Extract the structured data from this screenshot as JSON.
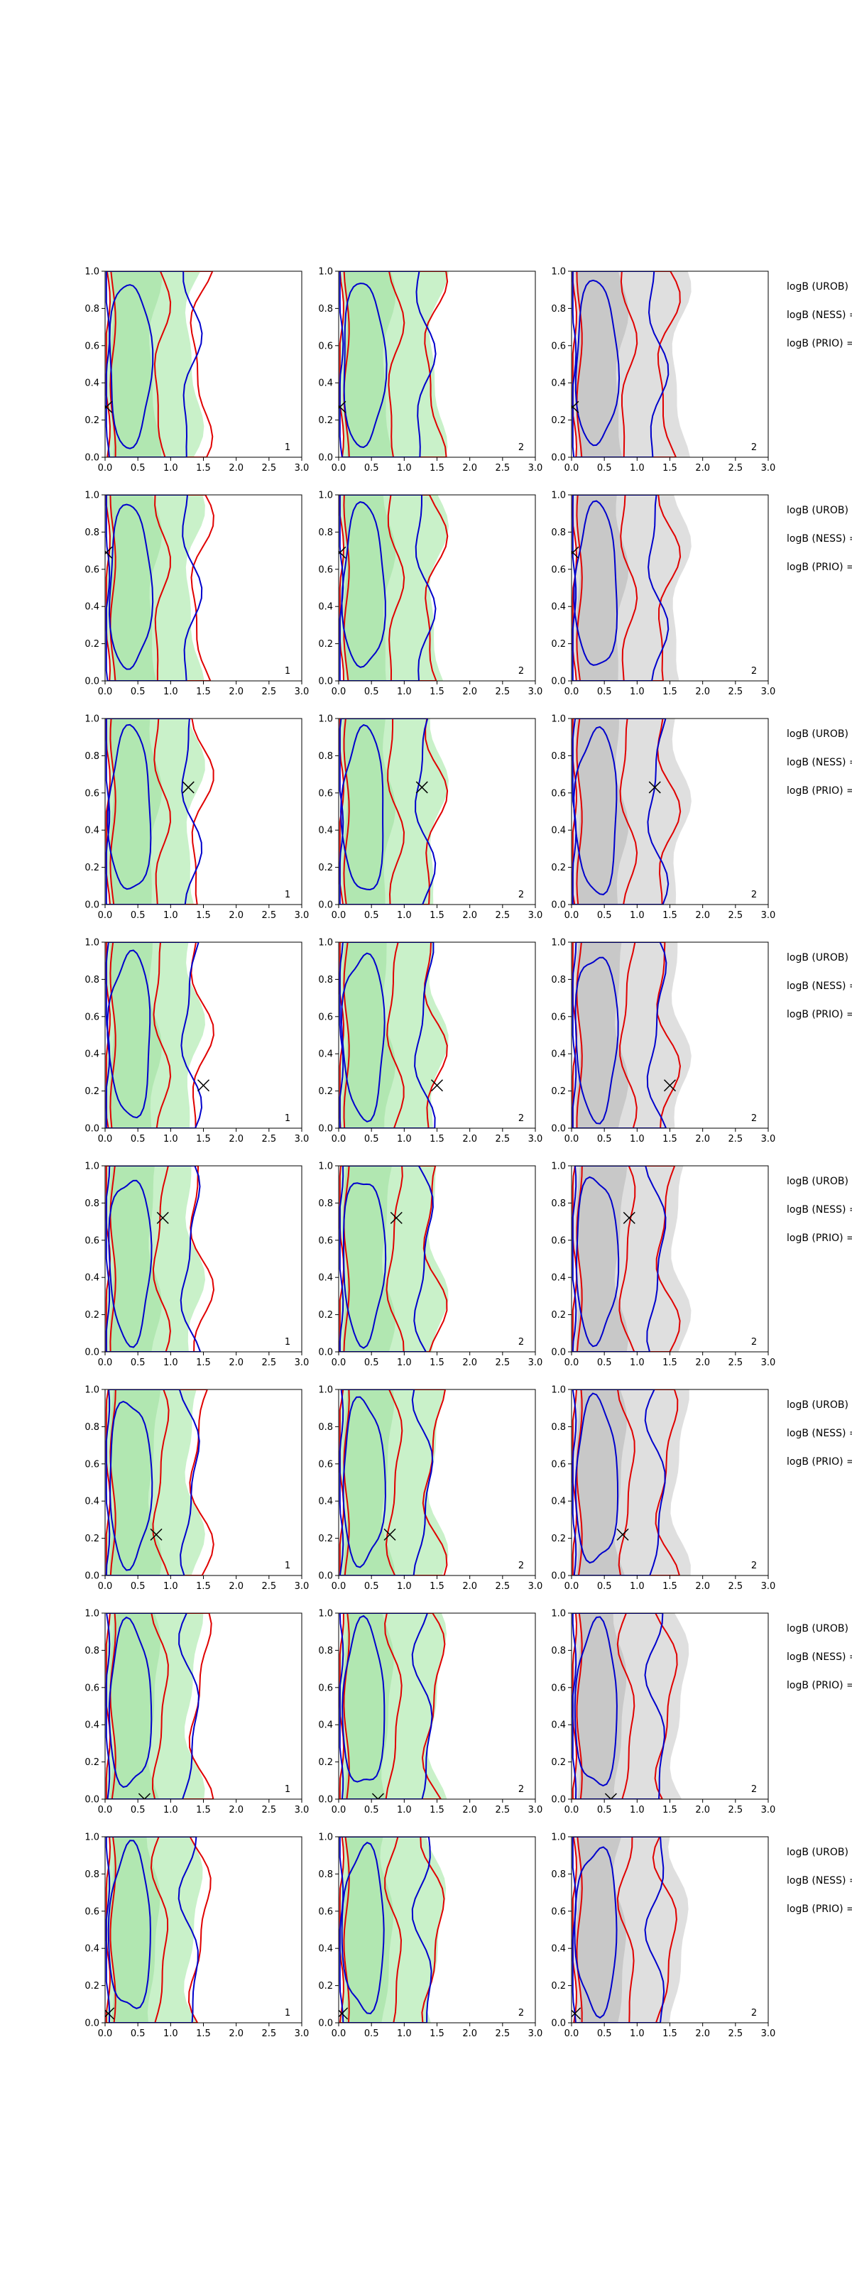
{
  "chart_data": {
    "type": "contour-grid",
    "rows": 8,
    "columns": 3,
    "xlim": [
      0,
      3
    ],
    "ylim": [
      0,
      1
    ],
    "xticks": [
      "0.0",
      "0.5",
      "1.0",
      "1.5",
      "2.0",
      "2.5",
      "3.0"
    ],
    "yticks": [
      "0.0",
      "0.2",
      "0.4",
      "0.6",
      "0.8",
      "1.0"
    ],
    "panel_corner_labels": [
      "1",
      "2",
      "2"
    ],
    "side_labels": [
      "logB (UROB) =",
      "logB (NESS) =",
      "logB (PRIO) ="
    ],
    "colors": {
      "green_fill": "#bfeebf",
      "green_fill_dark": "#a6e2a6",
      "gray_fill": "#d9d9d9",
      "gray_fill_dark": "#bdbdbd",
      "red_line": "#e00000",
      "blue_line": "#0000cc",
      "marker": "#000000"
    },
    "marker_positions": [
      {
        "row": 1,
        "x": 0.02,
        "y": 0.27
      },
      {
        "row": 2,
        "x": 0.02,
        "y": 0.69
      },
      {
        "row": 3,
        "x": 1.27,
        "y": 0.63
      },
      {
        "row": 4,
        "x": 1.5,
        "y": 0.23
      },
      {
        "row": 5,
        "x": 0.88,
        "y": 0.72
      },
      {
        "row": 6,
        "x": 0.78,
        "y": 0.22
      },
      {
        "row": 7,
        "x": 0.6,
        "y": 0.0
      },
      {
        "row": 8,
        "x": 0.05,
        "y": 0.05
      }
    ]
  }
}
